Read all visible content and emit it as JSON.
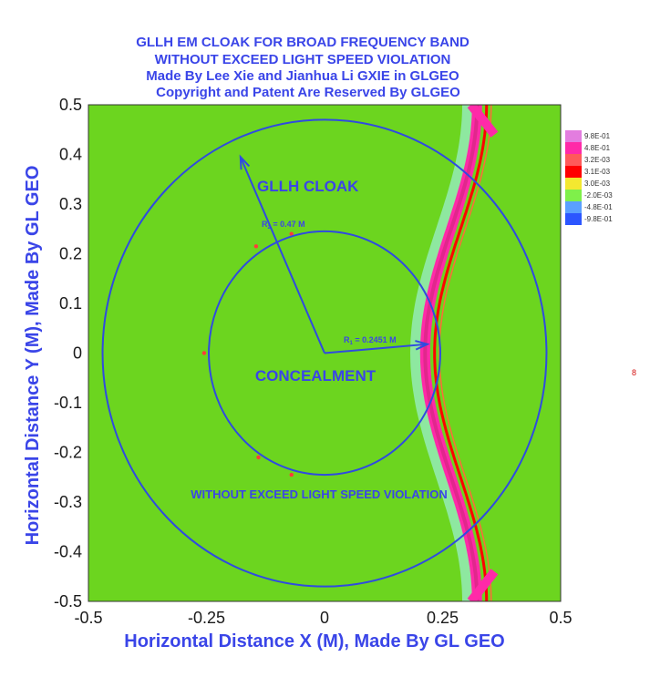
{
  "chart_data": {
    "type": "heatmap",
    "title_lines": [
      "GLLH EM CLOAK FOR BROAD FREQUENCY BAND",
      "WITHOUT EXCEED LIGHT SPEED VIOLATION",
      "Made By Lee Xie and Jianhua Li GXIE in GLGEO",
      "Copyright and Patent Are Reserved By GLGEO"
    ],
    "xlabel": "Horizontal Distance X (M), Made By GL GEO",
    "ylabel": "Horizontal Distance Y (M), Made By GL GEO",
    "xlim": [
      -0.5,
      0.5
    ],
    "ylim": [
      -0.5,
      0.5
    ],
    "xticks": [
      "-0.5",
      "-0.25",
      "0",
      "0.25",
      "0.5"
    ],
    "yticks": [
      "0.5",
      "0.4",
      "0.3",
      "0.2",
      "0.1",
      "0",
      "-0.1",
      "-0.2",
      "-0.3",
      "-0.4",
      "-0.5"
    ],
    "outer_radius": 0.47,
    "inner_radius": 0.2451,
    "legend": {
      "placement": "right",
      "levels": [
        "9.8E-01",
        "4.8E-01",
        "3.2E-03",
        "3.1E-03",
        "3.0E-03",
        "-2.0E-03",
        "-4.8E-01",
        "-9.8E-01"
      ],
      "colors": [
        "#e37ddf",
        "#ff2aa8",
        "#ff5a5a",
        "#ff0000",
        "#f3e830",
        "#7ff04a",
        "#5aa0ff",
        "#2c56ff"
      ]
    },
    "background_color": "#6cd51f",
    "annotations": {
      "cloak_label": "GLLH CLOAK",
      "r2_label": "R",
      "r2_sub": "2",
      "r2_value": " = 0.47 M",
      "r1_label": "R",
      "r1_sub": "1",
      "r1_value": " = 0.2451 M",
      "concealment": "CONCEALMENT",
      "violation": "WITHOUT EXCEED LIGHT SPEED VIOLATION",
      "side_mark": "8"
    }
  }
}
